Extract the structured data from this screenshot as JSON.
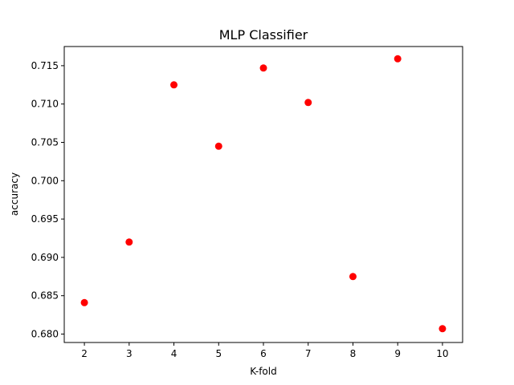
{
  "chart_data": {
    "type": "scatter",
    "title": "MLP Classifier",
    "xlabel": "K-fold",
    "ylabel": "accuracy",
    "x": [
      2,
      3,
      4,
      5,
      6,
      7,
      8,
      9,
      10
    ],
    "y": [
      0.6841,
      0.692,
      0.7125,
      0.7045,
      0.7147,
      0.7102,
      0.6875,
      0.7159,
      0.6807
    ],
    "xlim": [
      1.55,
      10.45
    ],
    "ylim": [
      0.6789,
      0.7175
    ],
    "xticks": [
      2,
      3,
      4,
      5,
      6,
      7,
      8,
      9,
      10
    ],
    "yticks": [
      0.68,
      0.685,
      0.69,
      0.695,
      0.7,
      0.705,
      0.71,
      0.715
    ],
    "ytick_labels": [
      "0.680",
      "0.685",
      "0.690",
      "0.695",
      "0.700",
      "0.705",
      "0.710",
      "0.715"
    ],
    "marker_color": "#ff0000",
    "grid": false,
    "legend": "none"
  }
}
